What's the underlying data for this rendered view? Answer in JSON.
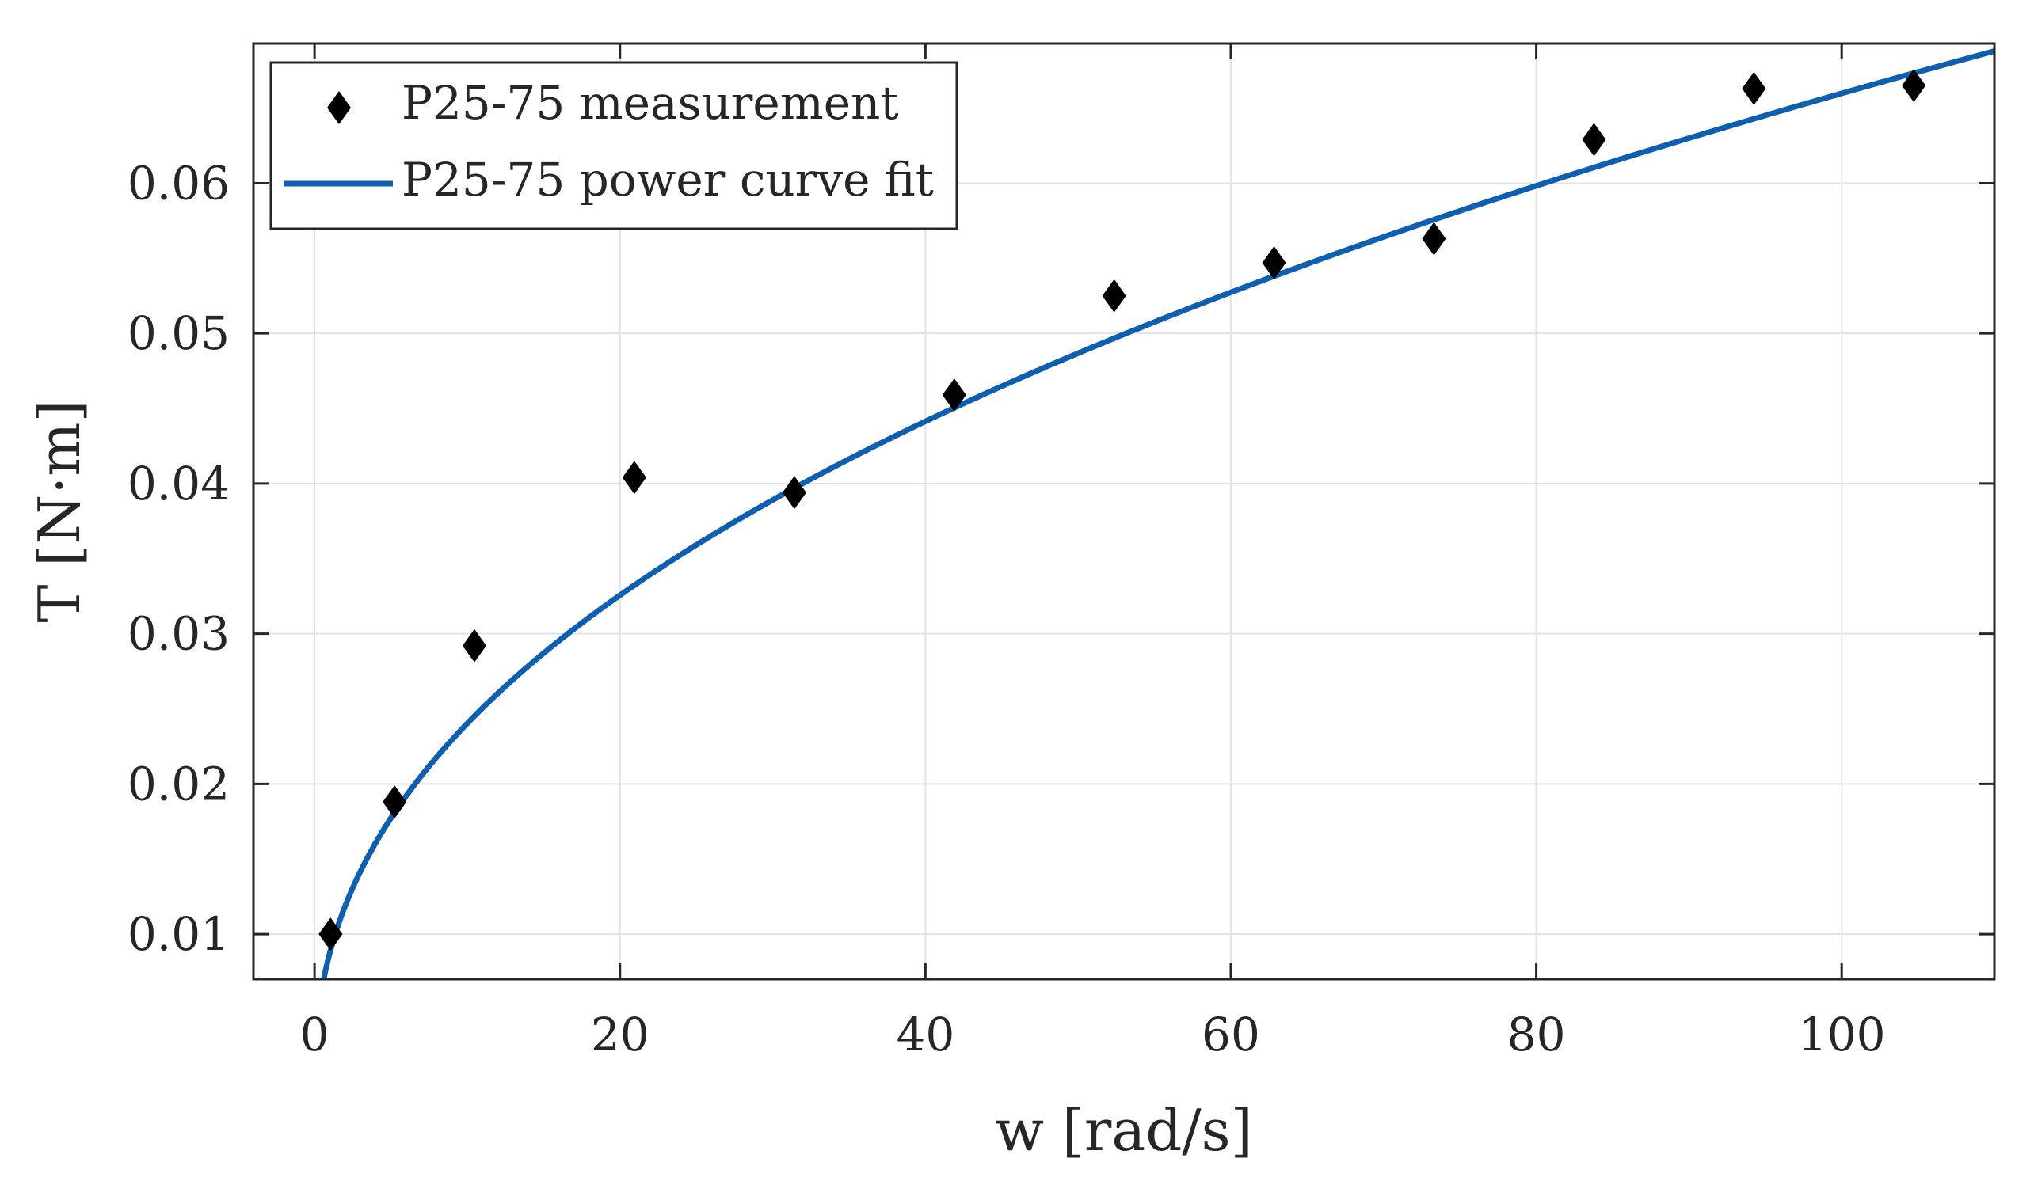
{
  "chart_data": {
    "type": "scatter",
    "title": "",
    "xlabel": "w [rad/s]",
    "ylabel": "T [N·m]",
    "xlim": [
      -4,
      110
    ],
    "ylim": [
      0.007,
      0.0693
    ],
    "xticks": [
      0,
      20,
      40,
      60,
      80,
      100
    ],
    "yticks": [
      0.01,
      0.02,
      0.03,
      0.04,
      0.05,
      0.06
    ],
    "xtick_labels": [
      "0",
      "20",
      "40",
      "60",
      "80",
      "100"
    ],
    "ytick_labels": [
      "0.01",
      "0.02",
      "0.03",
      "0.04",
      "0.05",
      "0.06"
    ],
    "grid": true,
    "legend_position": "top-left",
    "series": [
      {
        "name": "P25-75 measurement",
        "kind": "scatter",
        "marker": "diamond",
        "color": "#000000",
        "x": [
          1.05,
          5.24,
          10.47,
          20.94,
          31.42,
          41.89,
          52.36,
          62.83,
          73.3,
          83.78,
          94.25,
          104.72
        ],
        "y": [
          0.01,
          0.0188,
          0.0292,
          0.0404,
          0.0394,
          0.0459,
          0.0525,
          0.0547,
          0.0563,
          0.0629,
          0.0663,
          0.0665
        ]
      },
      {
        "name": "P25-75 power curve fit",
        "kind": "line",
        "color": "#0f5fb0",
        "fit": {
          "form": "a*x^b",
          "a": 0.00875,
          "b": 0.4387,
          "x_start": 0.18,
          "x_end": 110
        }
      }
    ]
  }
}
